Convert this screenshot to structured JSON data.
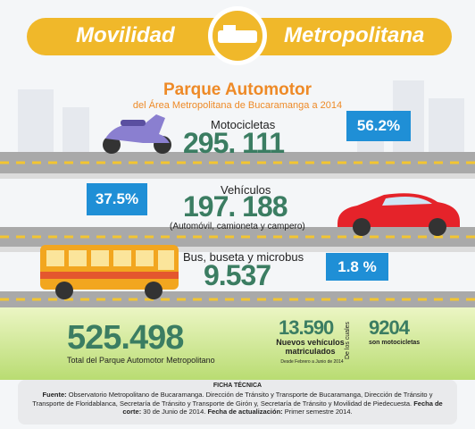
{
  "header": {
    "left": "Movilidad",
    "right": "Metropolitana"
  },
  "title": "Parque Automotor",
  "subtitle": "del Área Metropolitana de Bucaramanga a 2014",
  "motos": {
    "label": "Motocicletas",
    "number": "295. 111",
    "share": "56.2%"
  },
  "vehiculos": {
    "label": "Vehículos",
    "number": "197. 188",
    "detail": "(Automóvil, camioneta y campero)",
    "share": "37.5%"
  },
  "buses": {
    "label": "Bus, buseta y microbus",
    "number": "9.537",
    "share": "1.8 %"
  },
  "total": {
    "number": "525.498",
    "label": "Total del Parque Automotor Metropolitano"
  },
  "nuevos": {
    "number": "13.590",
    "label": "Nuevos vehículos matriculados",
    "period": "Desde Febrero a Junio de 2014"
  },
  "de_cuales": {
    "side": "De los cuales",
    "number": "9204",
    "label": "son motocicletas"
  },
  "ficha": {
    "heading": "FICHA TÉCNICA",
    "fuente_label": "Fuente:",
    "fuente": "Observatorio Metropolitano de Bucaramanga. Dirección de Tránsito y Transporte de Bucaramanga, Dirección de Tránsito y Transporte de Floridablanca, Secretaría de Tránsito y Transporte de Girón y, Secretaría de Tránsito y Movilidad de Piedecuesta.",
    "corte_label": "Fecha de corte:",
    "corte": "30 de Junio de 2014.",
    "actualizacion_label": "Fecha de actualización:",
    "actualizacion": "Primer semestre 2014."
  }
}
